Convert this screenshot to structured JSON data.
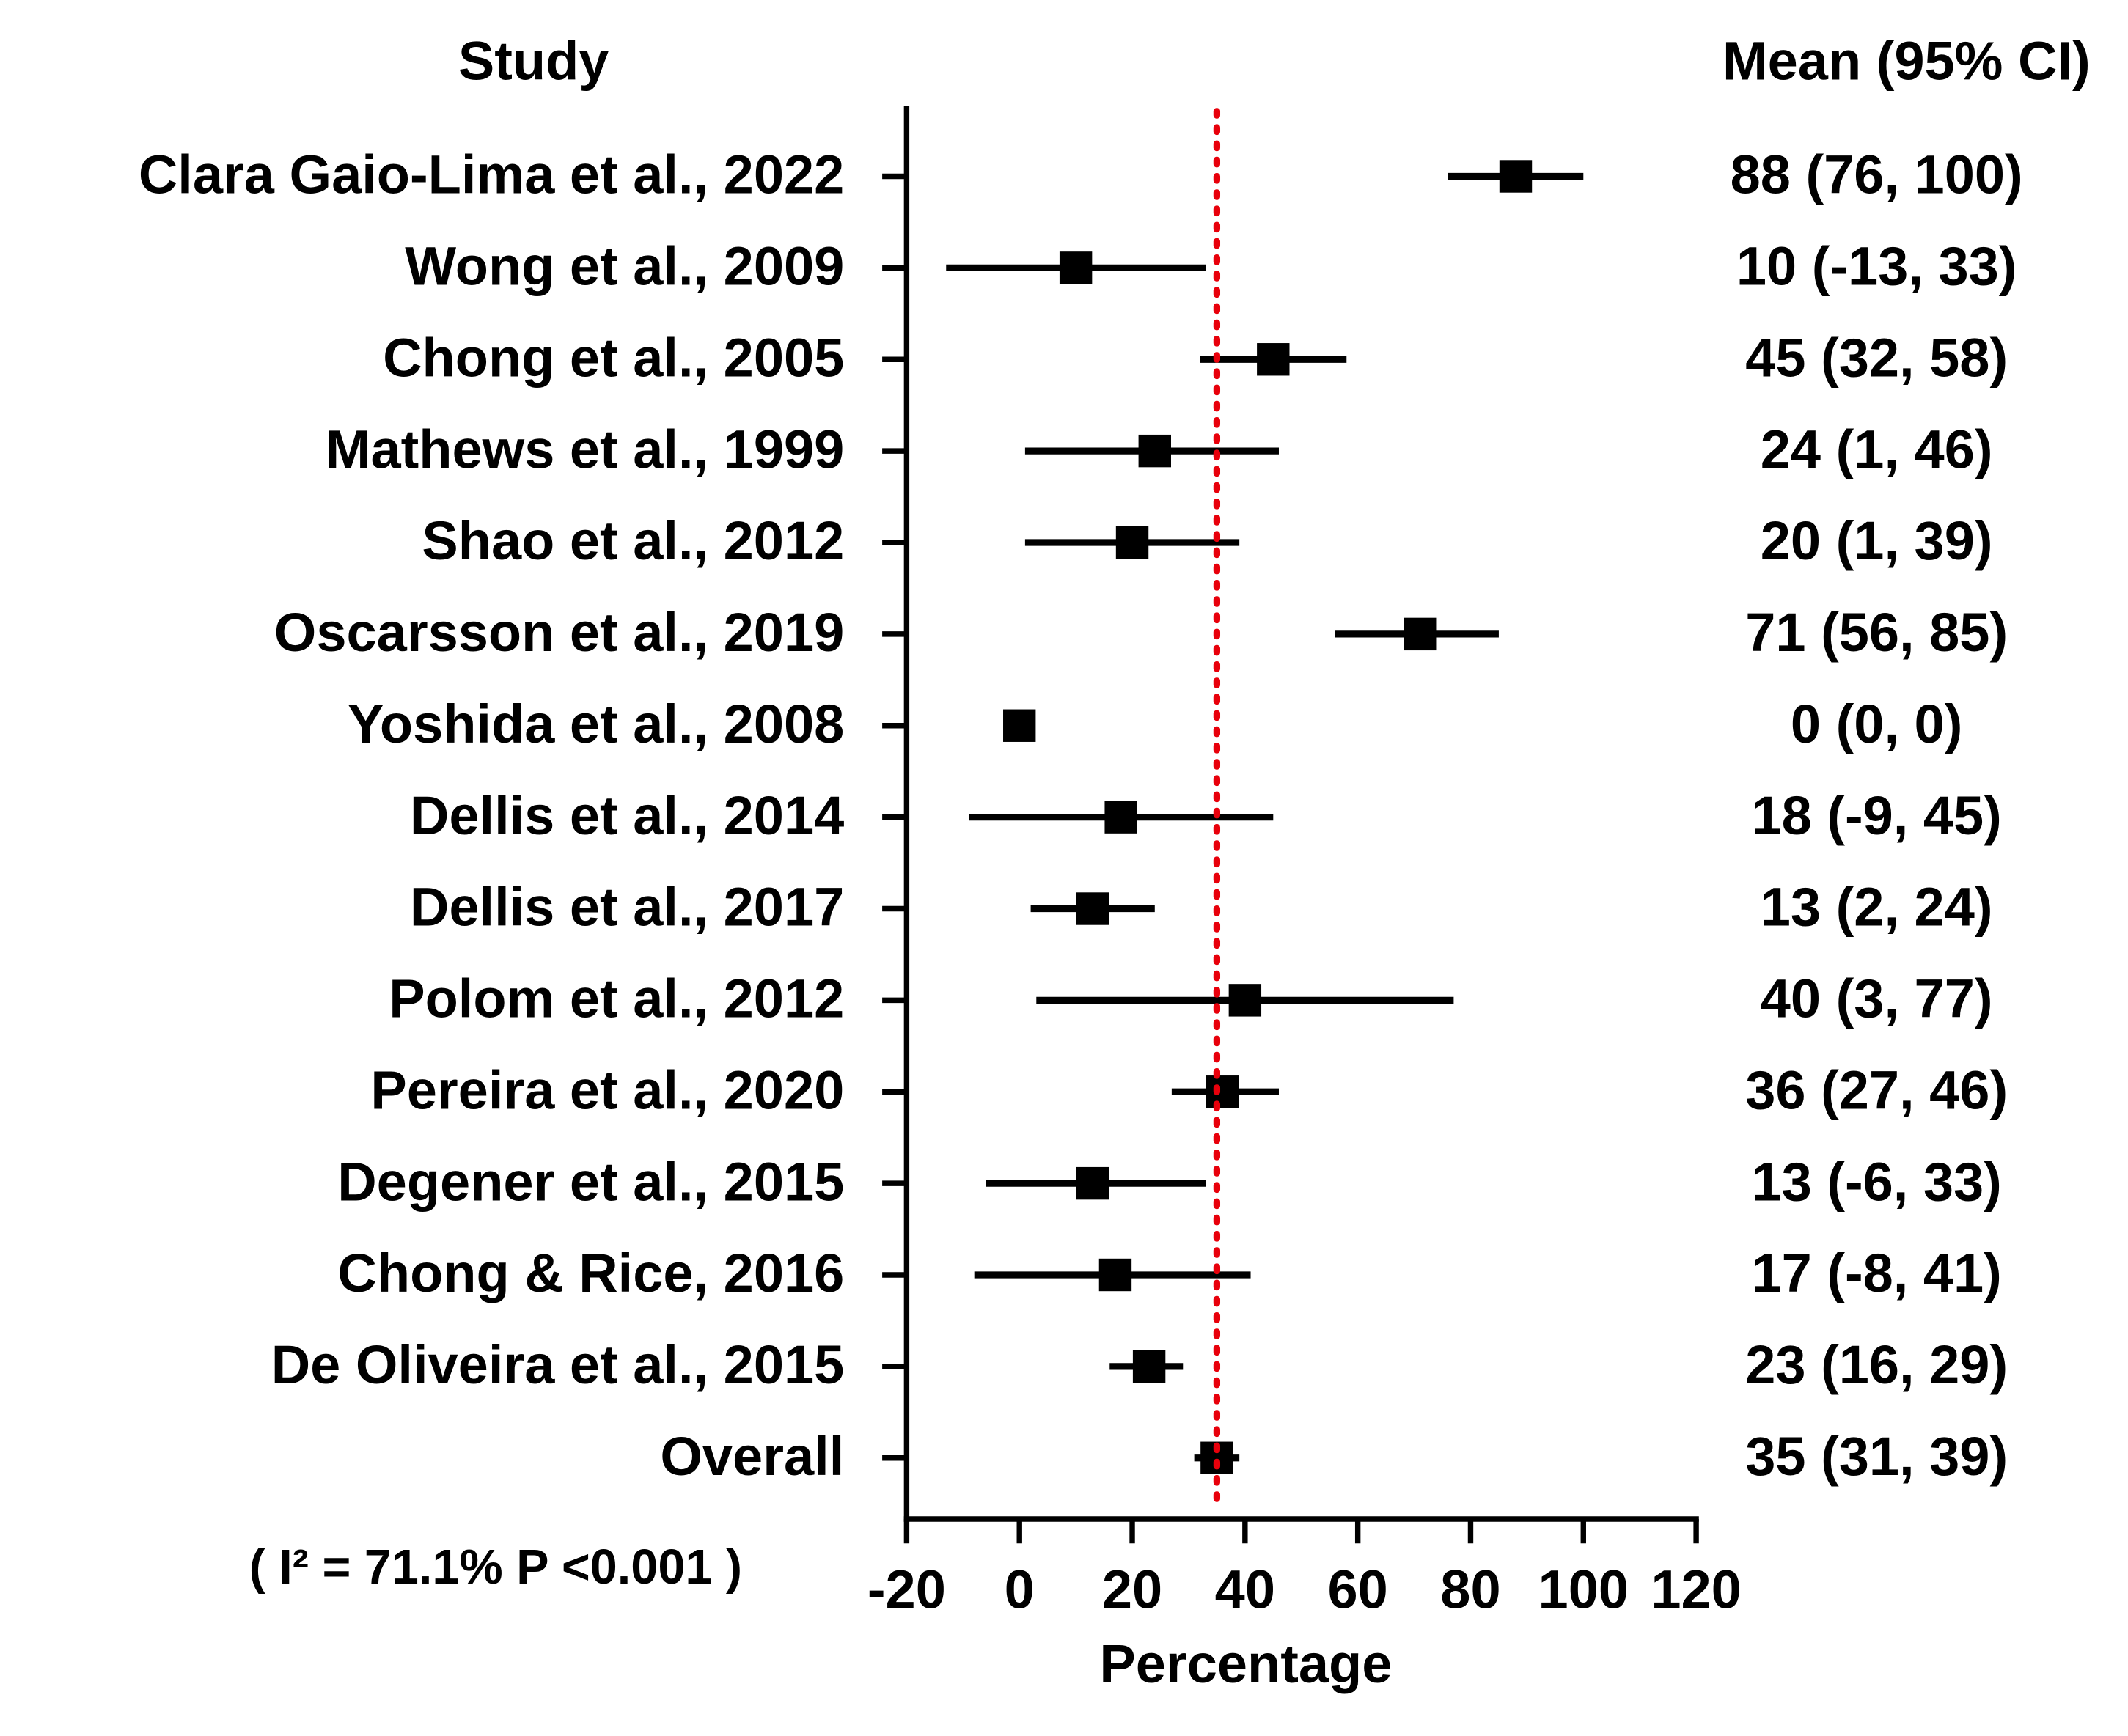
{
  "chart_data": {
    "type": "forest",
    "column_headers": [
      "Study",
      "Mean (95% CI)"
    ],
    "x_label": "Percentage",
    "annotation": "( I² = 71.1%  P <0.001 )",
    "categories": [
      "Clara Gaio-Lima et al., 2022",
      "Wong et al., 2009",
      "Chong et al., 2005",
      "Mathews et al., 1999",
      "Shao et al., 2012",
      "Oscarsson et al., 2019",
      "Yoshida et al., 2008",
      "Dellis et al., 2014",
      "Dellis et al., 2017",
      "Polom et al., 2012",
      "Pereira et al., 2020",
      "Degener et al., 2015",
      "Chong & Rice, 2016",
      "De Oliveira et al., 2015",
      "Overall"
    ],
    "values": [
      88,
      10,
      45,
      24,
      20,
      71,
      0,
      18,
      13,
      40,
      36,
      13,
      17,
      23,
      35
    ],
    "lower": [
      76,
      -13,
      32,
      1,
      1,
      56,
      0,
      -9,
      2,
      3,
      27,
      -6,
      -8,
      16,
      31
    ],
    "upper": [
      100,
      33,
      58,
      46,
      39,
      85,
      0,
      45,
      24,
      77,
      46,
      33,
      41,
      29,
      39
    ],
    "value_labels": [
      "88 (76, 100)",
      "10 (-13, 33)",
      "45 (32, 58)",
      "24 (1, 46)",
      "20 (1, 39)",
      "71 (56, 85)",
      "0 (0, 0)",
      "18 (-9, 45)",
      "13 (2, 24)",
      "40 (3, 77)",
      "36 (27, 46)",
      "13 (-6, 33)",
      "17 (-8, 41)",
      "23 (16, 29)",
      "35 (31, 39)"
    ],
    "color": "#000000",
    "reference_line": 35,
    "reference_color": "#e8000b",
    "xlim": [
      -20,
      120
    ],
    "xticks": [
      -20,
      0,
      20,
      40,
      60,
      80,
      100,
      120
    ]
  }
}
